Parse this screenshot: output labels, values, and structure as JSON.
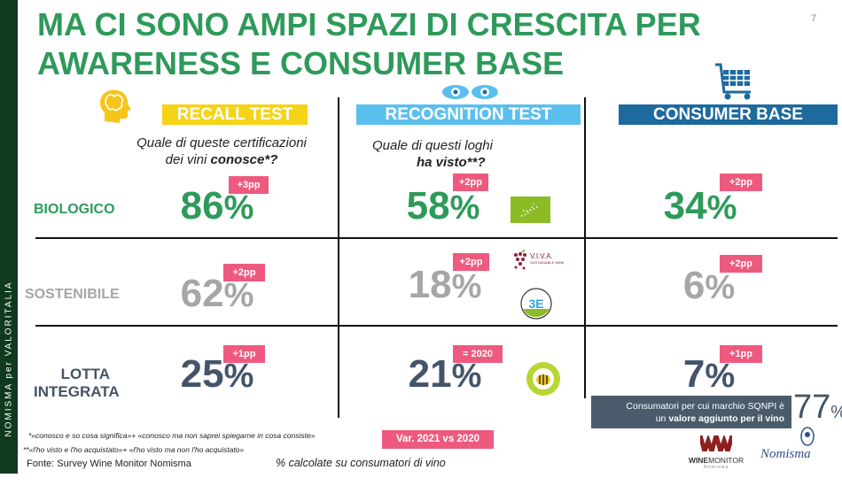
{
  "sidebar_text": "NOMISMA per VALORITALIA",
  "title": [
    "MA CI SONO AMPI SPAZI DI CRESCITA PER",
    "AWARENESS E CONSUMER BASE"
  ],
  "page_number": "7",
  "columns": [
    {
      "label": "RECALL TEST",
      "color": "#f5d417",
      "icon": "brain-head-icon",
      "question_line1": "Quale di queste certificazioni",
      "question_line2_plain": "dei vini ",
      "question_line2_bold": "conosce*?"
    },
    {
      "label": "RECOGNITION TEST",
      "color": "#5bbfee",
      "icon": "eyes-icon",
      "question_line1": "Quale di questi loghi",
      "question_line2_plain": "",
      "question_line2_bold": "ha visto**?"
    },
    {
      "label": "CONSUMER BASE",
      "color": "#1d6a9e",
      "icon": "shopping-cart-icon"
    }
  ],
  "rows": [
    {
      "label": "BIOLOGICO",
      "color": "#2e9a5a",
      "values": [
        "86",
        "58",
        "34"
      ],
      "changes": [
        "+3pp",
        "+2pp",
        "+2pp"
      ],
      "logos": [
        "eu-organic-leaf-logo"
      ]
    },
    {
      "label": "SOSTENIBILE",
      "color": "#a6a6a6",
      "values": [
        "62",
        "18",
        "6"
      ],
      "changes": [
        "+2pp",
        "+2pp",
        "+2pp"
      ],
      "logos": [
        "viva-sustainable-wine-logo",
        "equalitas-3e-logo"
      ],
      "viva_text": "V.I.V.A.",
      "viva_sub": "SUSTAINABLE WINE"
    },
    {
      "label_line1": "LOTTA",
      "label_line2": "INTEGRATA",
      "color": "#44546a",
      "values": [
        "21",
        "25",
        "7"
      ],
      "changes": [
        "+1pp",
        "= 2020",
        "+1pp"
      ],
      "logos": [
        "sqnpi-bee-logo"
      ]
    }
  ],
  "percent_sign": "%",
  "callout": {
    "line1": "Consumatori per cui marchio SQNPI  è",
    "line2_plain": "un ",
    "line2_bold": "valore aggiunto per il vino",
    "value": "77",
    "unit": "%"
  },
  "footnotes": {
    "note1": "*«conosco e so cosa significa»+ «conosco ma non saprei spiegarne in cosa consiste»",
    "note2": "**«l'ho visto e l'ho acquistato»+ «l'ho visto ma non l'ho acquistato»",
    "source": "Fonte: Survey Wine Monitor Nomisma",
    "base": "% calcolate su consumatori di vino",
    "variation_legend": "Var. 2021 vs 2020"
  },
  "logos": {
    "winemonitor_bold": "WINE",
    "winemonitor_light": "MONITOR",
    "winemonitor_sub": "Nomisma",
    "nomisma": "Nomisma"
  }
}
